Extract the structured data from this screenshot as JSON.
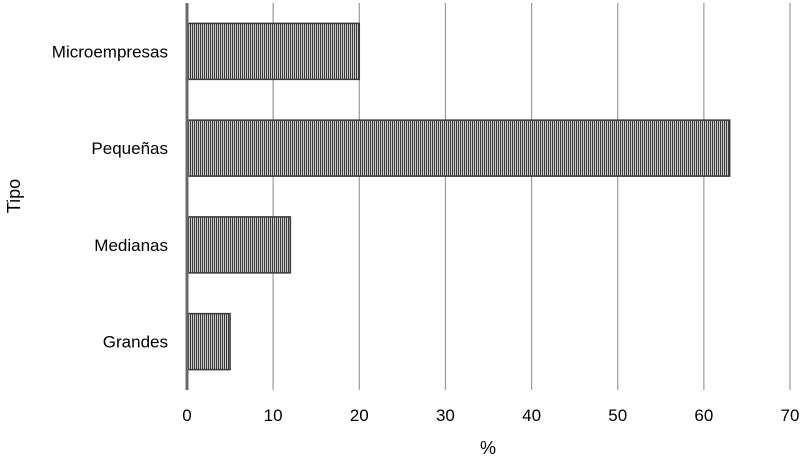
{
  "chart_data": {
    "type": "bar",
    "orientation": "horizontal",
    "categories": [
      "Microempresas",
      "Pequeñas",
      "Medianas",
      "Grandes"
    ],
    "values": [
      20,
      63,
      12,
      5
    ],
    "xlabel": "%",
    "ylabel": "Tipo",
    "xlim": [
      0,
      70
    ],
    "xticks": [
      "0",
      "10",
      "20",
      "30",
      "40",
      "50",
      "60",
      "70"
    ],
    "grid": "vertical",
    "legend": "none",
    "bar_color": "#3a3a3a",
    "bar_pattern": "vertical-hatch",
    "gridline_color": "#9a9a9a"
  }
}
